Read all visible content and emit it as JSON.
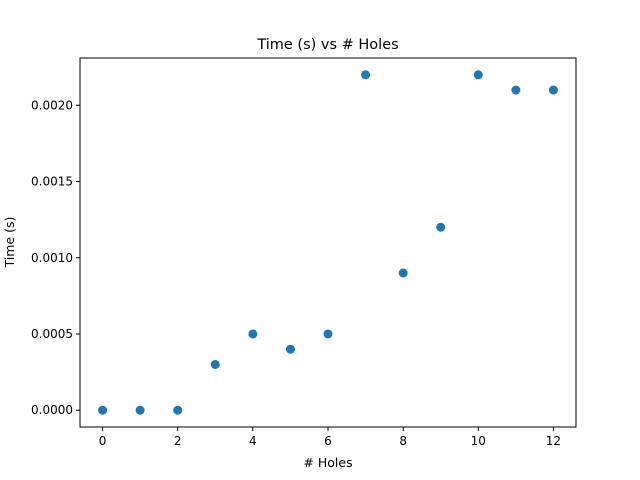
{
  "chart_data": {
    "type": "scatter",
    "title": "Time (s) vs # Holes",
    "xlabel": "# Holes",
    "ylabel": "Time (s)",
    "xlim": [
      -0.6,
      12.6
    ],
    "ylim": [
      -0.00011,
      0.00231
    ],
    "xticks": [
      0,
      2,
      4,
      6,
      8,
      10,
      12
    ],
    "xtick_labels": [
      "0",
      "2",
      "4",
      "6",
      "8",
      "10",
      "12"
    ],
    "yticks": [
      0.0,
      0.0005,
      0.001,
      0.0015,
      0.002
    ],
    "ytick_labels": [
      "0.0000",
      "0.0005",
      "0.0010",
      "0.0015",
      "0.0020"
    ],
    "grid": false,
    "legend": "none",
    "marker_color": "#1f77b4",
    "series": [
      {
        "x": [
          0,
          1,
          2,
          3,
          4,
          5,
          6,
          7,
          8,
          9,
          10,
          11,
          12
        ],
        "y": [
          0.0,
          0.0,
          0.0,
          0.0003,
          0.0005,
          0.0004,
          0.0005,
          0.0022,
          0.0009,
          0.0012,
          0.0022,
          0.0021,
          0.0021
        ]
      }
    ]
  }
}
